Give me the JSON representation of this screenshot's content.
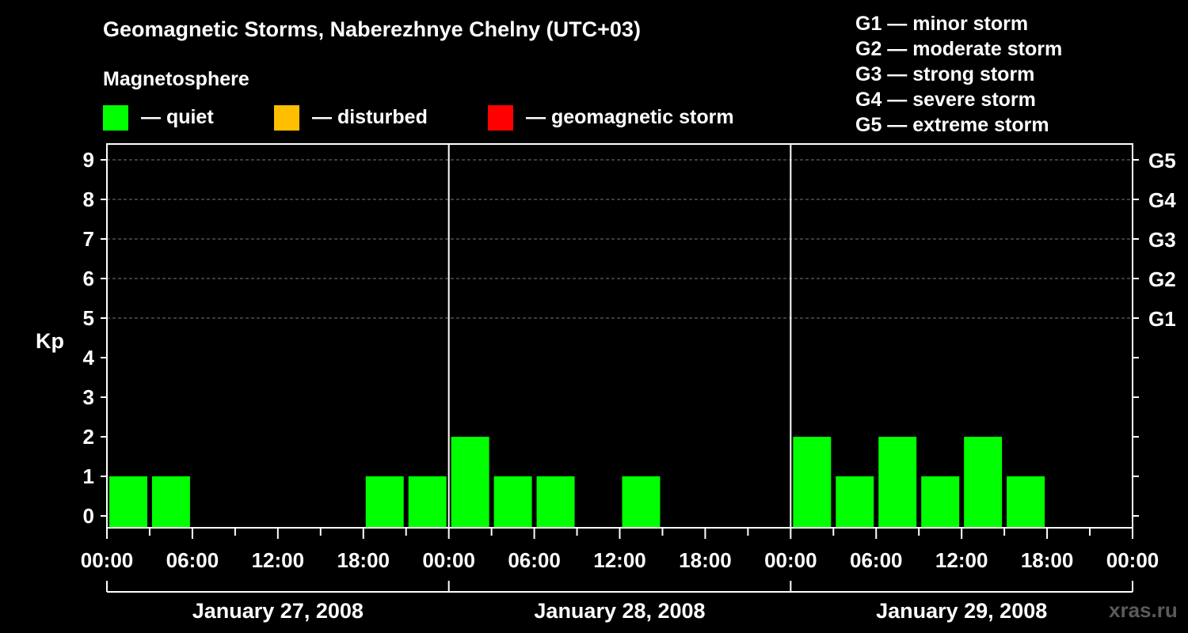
{
  "chart_data": {
    "type": "bar",
    "title": "Geomagnetic Storms, Naberezhnye Chelny (UTC+03)",
    "subtitle": "Magnetosphere",
    "ylabel": "Kp",
    "ylim": [
      0,
      9
    ],
    "yticks": [
      "0",
      "1",
      "2",
      "3",
      "4",
      "5",
      "6",
      "7",
      "8",
      "9"
    ],
    "right_axis_labels": [
      {
        "kp": 5,
        "label": "G1"
      },
      {
        "kp": 6,
        "label": "G2"
      },
      {
        "kp": 7,
        "label": "G3"
      },
      {
        "kp": 8,
        "label": "G4"
      },
      {
        "kp": 9,
        "label": "G5"
      }
    ],
    "legend": [
      {
        "label": "— quiet",
        "color": "#00ff00"
      },
      {
        "label": "— disturbed",
        "color": "#ffbf00"
      },
      {
        "label": "— geomagnetic storm",
        "color": "#ff0000"
      }
    ],
    "storm_scale": [
      "G1 — minor storm",
      "G2 — moderate storm",
      "G3 — strong storm",
      "G4 — severe storm",
      "G5 — extreme storm"
    ],
    "days": [
      "January 27, 2008",
      "January 28, 2008",
      "January 29, 2008"
    ],
    "xtick_labels": [
      "00:00",
      "06:00",
      "12:00",
      "18:00",
      "00:00",
      "06:00",
      "12:00",
      "18:00",
      "00:00",
      "06:00",
      "12:00",
      "18:00",
      "00:00"
    ],
    "interval_hours": 3,
    "series": [
      {
        "name": "Kp",
        "color": "#00ff00",
        "values": [
          1,
          1,
          0,
          0,
          0,
          0,
          1,
          1,
          2,
          1,
          1,
          0,
          1,
          0,
          0,
          0,
          2,
          1,
          2,
          1,
          2,
          1,
          0,
          0
        ]
      }
    ]
  },
  "watermark": "xras.ru"
}
